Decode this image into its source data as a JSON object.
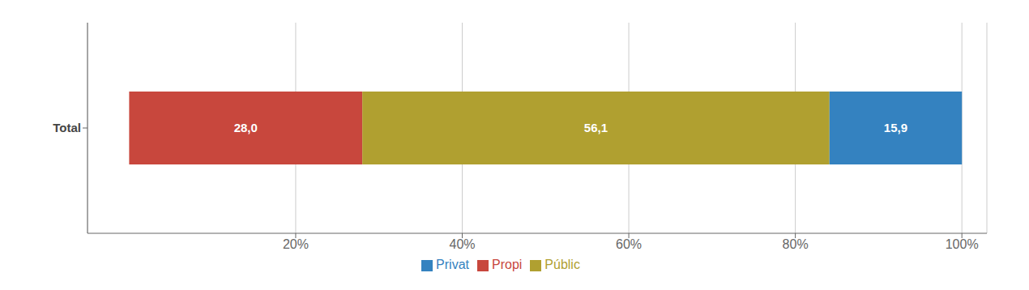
{
  "chart_data": {
    "type": "bar",
    "orientation": "horizontal",
    "stacked": true,
    "categories": [
      "Total"
    ],
    "series": [
      {
        "name": "Propi",
        "color": "#c8473d",
        "values": [
          28.0
        ],
        "value_labels": [
          "28,0"
        ]
      },
      {
        "name": "Públic",
        "color": "#b0a030",
        "values": [
          56.1
        ],
        "value_labels": [
          "56,1"
        ]
      },
      {
        "name": "Privat",
        "color": "#3482c0",
        "values": [
          15.9
        ],
        "value_labels": [
          "15,9"
        ]
      }
    ],
    "xlim": [
      -5,
      103
    ],
    "xticks": [
      {
        "value": 20,
        "label": "20%"
      },
      {
        "value": 40,
        "label": "40%"
      },
      {
        "value": 60,
        "label": "60%"
      },
      {
        "value": 80,
        "label": "80%"
      },
      {
        "value": 100,
        "label": "100%"
      }
    ],
    "grid": true,
    "legend": "bottom",
    "data_labels": true
  }
}
